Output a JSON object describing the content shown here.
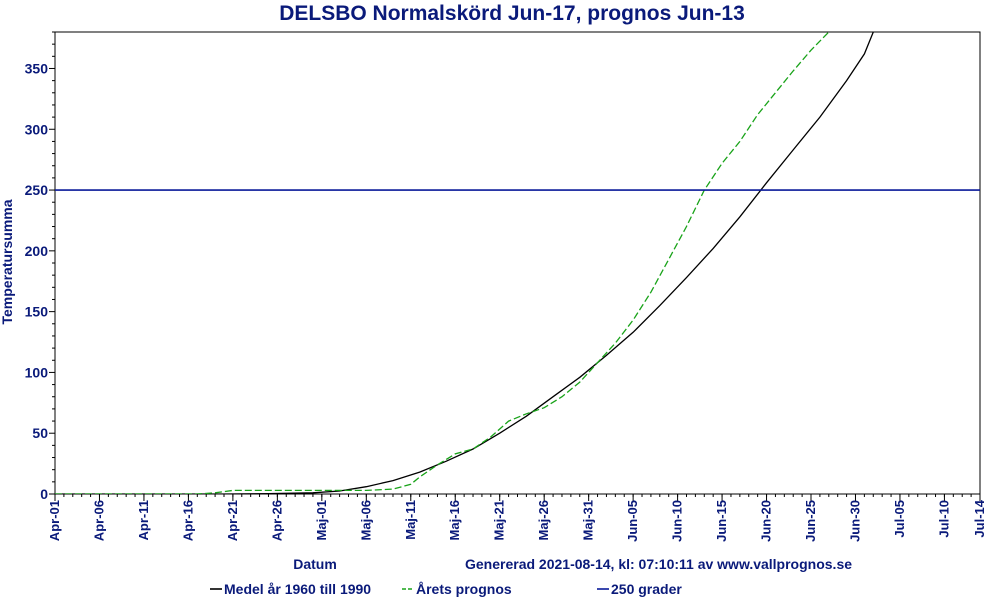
{
  "chart_data": {
    "type": "line",
    "title": "DELSBO Normalskörd Jun-17, prognos Jun-13",
    "xlabel": "Datum",
    "ylabel": "Temperatursumma",
    "footer": "Genererad 2021-08-14, kl: 07:10:11 av www.vallprognos.se",
    "x_range": [
      "Apr-01",
      "Jul-14"
    ],
    "ylim": [
      0,
      380
    ],
    "y_ticks": [
      0,
      50,
      100,
      150,
      200,
      250,
      300,
      350
    ],
    "x_ticks": [
      "Apr-01",
      "Apr-06",
      "Apr-11",
      "Apr-16",
      "Apr-21",
      "Apr-26",
      "Maj-01",
      "Maj-06",
      "Maj-11",
      "Maj-16",
      "Maj-21",
      "Maj-26",
      "Maj-31",
      "Jun-05",
      "Jun-10",
      "Jun-15",
      "Jun-20",
      "Jun-25",
      "Jun-30",
      "Jul-05",
      "Jul-10",
      "Jul-14"
    ],
    "grid": false,
    "legend_position": "bottom",
    "series": [
      {
        "name": "Medel år 1960 till 1990",
        "color": "#000000",
        "style": "solid",
        "dates": [
          "Apr-01",
          "Apr-20",
          "Apr-25",
          "Apr-30",
          "May-03",
          "May-06",
          "May-09",
          "May-12",
          "May-15",
          "May-18",
          "May-21",
          "May-24",
          "May-27",
          "May-30",
          "Jun-02",
          "Jun-05",
          "Jun-08",
          "Jun-11",
          "Jun-14",
          "Jun-17",
          "Jun-20",
          "Jun-23",
          "Jun-26",
          "Jun-29",
          "Jul-01",
          "Jul-02"
        ],
        "values": [
          0,
          0,
          0.3,
          1,
          2.5,
          6,
          11,
          18,
          27,
          37,
          50,
          64,
          80,
          96,
          114,
          133,
          155,
          178,
          202,
          228,
          256,
          283,
          310,
          340,
          362,
          380
        ]
      },
      {
        "name": "Årets prognos",
        "color": "#19a319",
        "style": "dashed",
        "dates": [
          "Apr-01",
          "Apr-17",
          "Apr-19",
          "Apr-21",
          "May-01",
          "May-06",
          "May-09",
          "May-11",
          "May-12",
          "May-14",
          "May-16",
          "May-18",
          "May-20",
          "May-22",
          "May-24",
          "May-26",
          "May-28",
          "May-30",
          "Jun-01",
          "Jun-03",
          "Jun-05",
          "Jun-07",
          "Jun-09",
          "Jun-11",
          "Jun-13",
          "Jun-15",
          "Jun-17",
          "Jun-19",
          "Jun-21",
          "Jun-23",
          "Jun-25",
          "Jun-27",
          "Jun-28"
        ],
        "values": [
          0,
          0,
          1,
          3,
          3,
          3,
          4,
          8,
          14,
          24,
          33,
          37,
          47,
          60,
          66,
          71,
          80,
          92,
          108,
          124,
          143,
          166,
          193,
          220,
          250,
          272,
          290,
          312,
          330,
          348,
          365,
          380,
          395
        ]
      },
      {
        "name": "250 grader",
        "color": "#0a1a9a",
        "style": "solid",
        "dates": [
          "Apr-01",
          "Jul-14"
        ],
        "values": [
          250,
          250
        ]
      }
    ]
  }
}
